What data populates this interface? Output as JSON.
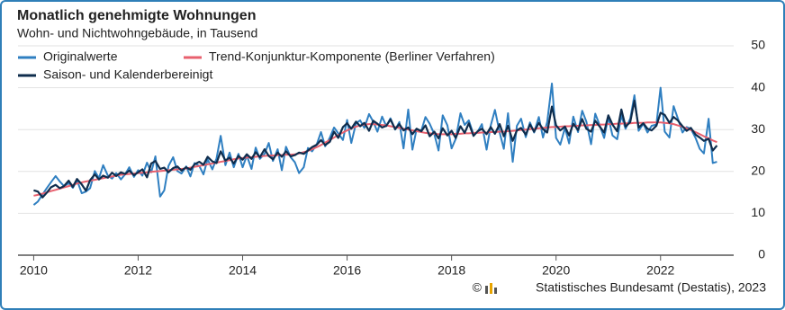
{
  "chart_data": {
    "type": "line",
    "title": "Monatlich genehmigte Wohnungen",
    "subtitle": "Wohn- und Nichtwohngebäude, in Tausend",
    "copyright": "©",
    "source": "Statistisches Bundesamt (Destatis), 2023",
    "legend": "top-left",
    "grid": true,
    "xlim": [
      2009.7,
      2023.4
    ],
    "xticks": [
      2010,
      2012,
      2014,
      2016,
      2018,
      2020,
      2022
    ],
    "ylim": [
      0,
      50
    ],
    "yticks": [
      0,
      10,
      20,
      30,
      40,
      50
    ],
    "x": [
      2010.0,
      2010.08,
      2010.17,
      2010.25,
      2010.33,
      2010.42,
      2010.5,
      2010.58,
      2010.67,
      2010.75,
      2010.83,
      2010.92,
      2011.0,
      2011.08,
      2011.17,
      2011.25,
      2011.33,
      2011.42,
      2011.5,
      2011.58,
      2011.67,
      2011.75,
      2011.83,
      2011.92,
      2012.0,
      2012.08,
      2012.17,
      2012.25,
      2012.33,
      2012.42,
      2012.5,
      2012.58,
      2012.67,
      2012.75,
      2012.83,
      2012.92,
      2013.0,
      2013.08,
      2013.17,
      2013.25,
      2013.33,
      2013.42,
      2013.5,
      2013.58,
      2013.67,
      2013.75,
      2013.83,
      2013.92,
      2014.0,
      2014.08,
      2014.17,
      2014.25,
      2014.33,
      2014.42,
      2014.5,
      2014.58,
      2014.67,
      2014.75,
      2014.83,
      2014.92,
      2015.0,
      2015.08,
      2015.17,
      2015.25,
      2015.33,
      2015.42,
      2015.5,
      2015.58,
      2015.67,
      2015.75,
      2015.83,
      2015.92,
      2016.0,
      2016.08,
      2016.17,
      2016.25,
      2016.33,
      2016.42,
      2016.5,
      2016.58,
      2016.67,
      2016.75,
      2016.83,
      2016.92,
      2017.0,
      2017.08,
      2017.17,
      2017.25,
      2017.33,
      2017.42,
      2017.5,
      2017.58,
      2017.67,
      2017.75,
      2017.83,
      2017.92,
      2018.0,
      2018.08,
      2018.17,
      2018.25,
      2018.33,
      2018.42,
      2018.5,
      2018.58,
      2018.67,
      2018.75,
      2018.83,
      2018.92,
      2019.0,
      2019.08,
      2019.17,
      2019.25,
      2019.33,
      2019.42,
      2019.5,
      2019.58,
      2019.67,
      2019.75,
      2019.83,
      2019.92,
      2020.0,
      2020.08,
      2020.17,
      2020.25,
      2020.33,
      2020.42,
      2020.5,
      2020.58,
      2020.67,
      2020.75,
      2020.83,
      2020.92,
      2021.0,
      2021.08,
      2021.17,
      2021.25,
      2021.33,
      2021.42,
      2021.5,
      2021.58,
      2021.67,
      2021.75,
      2021.83,
      2021.92,
      2022.0,
      2022.08,
      2022.17,
      2022.25,
      2022.33,
      2022.42,
      2022.5,
      2022.58,
      2022.67,
      2022.75,
      2022.83,
      2022.92,
      2023.0,
      2023.08
    ],
    "series": [
      {
        "name": "Originalwerte",
        "color": "#2f7fc1",
        "values": [
          12.0,
          12.8,
          14.5,
          16.0,
          17.4,
          18.9,
          17.6,
          16.5,
          17.2,
          16.1,
          17.9,
          14.8,
          15.2,
          16.0,
          20.1,
          18.4,
          21.5,
          19.0,
          18.3,
          19.6,
          18.1,
          19.3,
          21.0,
          18.7,
          20.3,
          19.0,
          22.1,
          19.8,
          23.6,
          14.0,
          15.5,
          21.3,
          23.4,
          20.1,
          19.5,
          21.2,
          18.8,
          22.0,
          21.3,
          19.3,
          22.9,
          20.5,
          23.1,
          28.5,
          21.5,
          24.5,
          21.0,
          24.2,
          21.0,
          23.8,
          20.6,
          25.7,
          23.0,
          24.2,
          26.8,
          22.5,
          25.3,
          20.3,
          25.9,
          23.4,
          22.2,
          19.6,
          21.0,
          25.6,
          24.8,
          26.5,
          29.4,
          26.0,
          28.1,
          30.5,
          29.1,
          27.5,
          32.3,
          26.8,
          31.5,
          32.2,
          30.4,
          33.7,
          31.9,
          29.5,
          33.1,
          30.8,
          32.7,
          30.0,
          31.8,
          25.5,
          34.8,
          25.2,
          30.1,
          29.7,
          33.0,
          31.4,
          28.9,
          25.0,
          33.4,
          31.0,
          25.5,
          27.8,
          33.9,
          31.1,
          32.2,
          28.8,
          29.5,
          31.3,
          25.2,
          31.0,
          34.7,
          29.3,
          25.4,
          33.9,
          22.3,
          30.9,
          32.6,
          28.2,
          31.7,
          29.3,
          33.0,
          28.1,
          31.8,
          41.0,
          28.0,
          26.4,
          30.4,
          26.7,
          33.1,
          29.4,
          34.5,
          31.9,
          26.5,
          33.8,
          31.2,
          28.0,
          33.0,
          28.6,
          27.7,
          33.4,
          30.2,
          32.6,
          38.2,
          29.7,
          31.4,
          29.3,
          30.9,
          31.2,
          40.0,
          29.5,
          28.1,
          35.6,
          32.7,
          29.3,
          30.6,
          30.2,
          28.0,
          25.4,
          24.3,
          32.6,
          22.0,
          22.3
        ]
      },
      {
        "name": "Trend-Konjunktur-Komponente (Berliner Verfahren)",
        "color": "#e8606e",
        "values": [
          14.2,
          14.4,
          14.7,
          15.0,
          15.3,
          15.6,
          15.9,
          16.2,
          16.5,
          16.8,
          17.1,
          17.4,
          17.6,
          17.8,
          18.0,
          18.2,
          18.4,
          18.6,
          18.8,
          19.0,
          19.2,
          19.3,
          19.4,
          19.5,
          19.6,
          19.7,
          19.8,
          19.9,
          20.0,
          20.1,
          20.2,
          20.3,
          20.4,
          20.5,
          20.6,
          20.7,
          20.9,
          21.1,
          21.3,
          21.5,
          21.7,
          21.9,
          22.1,
          22.3,
          22.5,
          22.7,
          22.9,
          23.1,
          23.2,
          23.3,
          23.4,
          23.5,
          23.6,
          23.7,
          23.8,
          23.8,
          23.9,
          23.9,
          24.0,
          24.0,
          24.1,
          24.3,
          24.6,
          24.9,
          25.3,
          25.8,
          26.3,
          26.9,
          27.5,
          28.1,
          28.7,
          29.3,
          29.8,
          30.3,
          30.7,
          31.0,
          31.2,
          31.3,
          31.3,
          31.2,
          31.1,
          31.0,
          30.8,
          30.6,
          30.4,
          30.2,
          30.0,
          29.8,
          29.6,
          29.4,
          29.2,
          29.1,
          29.0,
          28.9,
          28.9,
          28.9,
          28.9,
          29.0,
          29.0,
          29.1,
          29.1,
          29.2,
          29.2,
          29.3,
          29.3,
          29.4,
          29.4,
          29.5,
          29.5,
          29.6,
          29.7,
          29.8,
          29.9,
          30.0,
          30.1,
          30.2,
          30.3,
          30.4,
          30.5,
          30.6,
          30.6,
          30.7,
          30.8,
          30.8,
          30.9,
          30.9,
          31.0,
          31.0,
          31.1,
          31.1,
          31.2,
          31.2,
          31.3,
          31.3,
          31.4,
          31.4,
          31.5,
          31.5,
          31.6,
          31.6,
          31.6,
          31.7,
          31.7,
          31.7,
          31.7,
          31.6,
          31.5,
          31.3,
          31.0,
          30.7,
          30.3,
          29.9,
          29.4,
          28.9,
          28.4,
          27.9,
          27.4,
          27.0
        ]
      },
      {
        "name": "Saison- und Kalenderbereinigt",
        "color": "#0f2d4d",
        "values": [
          15.5,
          15.2,
          13.8,
          14.9,
          16.2,
          16.8,
          16.0,
          16.5,
          17.8,
          16.3,
          18.2,
          16.9,
          15.4,
          17.9,
          19.3,
          18.1,
          19.0,
          18.5,
          19.7,
          18.9,
          19.8,
          19.4,
          20.2,
          19.1,
          19.8,
          20.5,
          18.6,
          21.9,
          22.5,
          20.6,
          20.9,
          19.8,
          20.8,
          21.2,
          20.2,
          21.0,
          20.4,
          21.7,
          22.3,
          21.6,
          23.5,
          22.4,
          22.0,
          24.8,
          22.6,
          23.3,
          21.9,
          23.7,
          22.8,
          24.1,
          23.0,
          24.6,
          23.4,
          25.3,
          23.7,
          22.9,
          24.5,
          23.5,
          24.8,
          23.6,
          23.9,
          24.5,
          24.2,
          25.0,
          25.8,
          26.4,
          27.5,
          26.3,
          27.1,
          29.5,
          28.0,
          30.6,
          31.5,
          30.2,
          31.9,
          30.8,
          31.6,
          29.7,
          32.1,
          31.4,
          30.5,
          30.9,
          32.4,
          30.1,
          31.3,
          29.8,
          30.5,
          28.9,
          30.2,
          29.6,
          31.0,
          28.4,
          29.5,
          27.9,
          30.3,
          28.6,
          29.7,
          28.0,
          30.8,
          29.2,
          31.5,
          28.5,
          29.6,
          30.2,
          28.9,
          30.6,
          29.0,
          31.3,
          28.4,
          30.9,
          27.3,
          29.8,
          30.4,
          28.8,
          31.2,
          29.5,
          31.6,
          30.1,
          29.3,
          35.5,
          31.0,
          29.8,
          30.7,
          28.6,
          31.4,
          29.9,
          32.5,
          30.2,
          29.5,
          32.1,
          30.8,
          29.3,
          33.4,
          31.2,
          29.6,
          34.8,
          30.7,
          31.8,
          36.9,
          30.5,
          31.5,
          30.2,
          29.8,
          30.9,
          34.0,
          33.5,
          31.6,
          33.0,
          32.2,
          30.8,
          29.7,
          30.4,
          28.8,
          28.1,
          27.3,
          27.8,
          25.0,
          26.2
        ]
      }
    ]
  }
}
